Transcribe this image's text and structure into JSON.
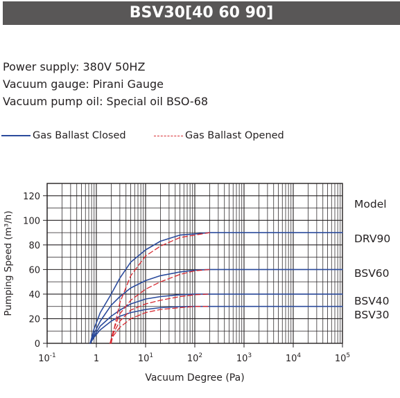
{
  "header": {
    "title": "BSV30[40 60 90]"
  },
  "specs": {
    "power_supply": "Power supply: 380V 50HZ",
    "vacuum_gauge": "Vacuum gauge: Pirani Gauge",
    "pump_oil": "Vacuum pump oil: Special oil BSO-68"
  },
  "legend": {
    "closed": {
      "label": "Gas Ballast Closed",
      "color": "#2a4a9c",
      "style": "solid"
    },
    "opened": {
      "label": "Gas Ballast Opened",
      "color": "#d7282f",
      "style": "dashed"
    }
  },
  "colors": {
    "title_bar": "#595757",
    "closed": "#2a4a9c",
    "opened": "#d7282f",
    "grid": "#231f20"
  },
  "chart_data": {
    "type": "line",
    "xlabel": "Vacuum Degree (Pa)",
    "ylabel": "Pumping Speed (m³/h)",
    "xscale": "log",
    "xlim": [
      0.1,
      100000
    ],
    "ylim": [
      0,
      130
    ],
    "x_ticks": [
      {
        "value": 0.1,
        "base": "10",
        "exp": "-1"
      },
      {
        "value": 1,
        "base": "1",
        "exp": ""
      },
      {
        "value": 10,
        "base": "10",
        "exp": "1"
      },
      {
        "value": 100,
        "base": "10",
        "exp": "2"
      },
      {
        "value": 1000,
        "base": "10",
        "exp": "3"
      },
      {
        "value": 10000,
        "base": "10",
        "exp": "4"
      },
      {
        "value": 100000,
        "base": "10",
        "exp": "5"
      }
    ],
    "y_ticks": [
      0,
      20,
      40,
      60,
      80,
      100,
      120
    ],
    "grid": true,
    "model_header": "Model",
    "models": [
      {
        "name": "DRV90",
        "max": 90
      },
      {
        "name": "BSV60",
        "max": 60
      },
      {
        "name": "BSV40",
        "max": 40
      },
      {
        "name": "BSV30",
        "max": 30
      }
    ],
    "series": [
      {
        "model": "DRV90",
        "ballast": "closed",
        "points": [
          [
            0.75,
            0
          ],
          [
            0.9,
            12
          ],
          [
            1.2,
            25
          ],
          [
            2,
            40
          ],
          [
            3,
            53
          ],
          [
            5,
            66
          ],
          [
            10,
            76
          ],
          [
            20,
            83
          ],
          [
            50,
            88
          ],
          [
            100,
            89
          ],
          [
            200,
            90
          ],
          [
            100000,
            90
          ]
        ]
      },
      {
        "model": "BSV60",
        "ballast": "closed",
        "points": [
          [
            0.75,
            0
          ],
          [
            0.9,
            8
          ],
          [
            1.2,
            18
          ],
          [
            2,
            31
          ],
          [
            3,
            38
          ],
          [
            5,
            45
          ],
          [
            10,
            51
          ],
          [
            20,
            55
          ],
          [
            50,
            58
          ],
          [
            100,
            59.5
          ],
          [
            200,
            60
          ],
          [
            100000,
            60
          ]
        ]
      },
      {
        "model": "BSV40",
        "ballast": "closed",
        "points": [
          [
            0.75,
            0
          ],
          [
            0.9,
            6
          ],
          [
            1.2,
            14
          ],
          [
            2,
            22
          ],
          [
            3,
            27
          ],
          [
            5,
            32
          ],
          [
            10,
            36
          ],
          [
            20,
            38
          ],
          [
            50,
            39.5
          ],
          [
            100,
            40
          ],
          [
            100000,
            40
          ]
        ]
      },
      {
        "model": "BSV30",
        "ballast": "closed",
        "points": [
          [
            0.75,
            0
          ],
          [
            0.9,
            5
          ],
          [
            1.2,
            11
          ],
          [
            2,
            18
          ],
          [
            3,
            22
          ],
          [
            5,
            25
          ],
          [
            10,
            27.5
          ],
          [
            20,
            29
          ],
          [
            50,
            29.8
          ],
          [
            100,
            30
          ],
          [
            100000,
            30
          ]
        ]
      },
      {
        "model": "DRV90",
        "ballast": "opened",
        "points": [
          [
            2,
            0
          ],
          [
            2.3,
            12
          ],
          [
            3,
            33
          ],
          [
            5,
            55
          ],
          [
            10,
            71
          ],
          [
            20,
            79
          ],
          [
            50,
            86
          ],
          [
            100,
            88
          ],
          [
            200,
            90
          ]
        ]
      },
      {
        "model": "BSV60",
        "ballast": "opened",
        "points": [
          [
            1.9,
            0
          ],
          [
            2.2,
            10
          ],
          [
            3,
            24
          ],
          [
            5,
            35
          ],
          [
            10,
            44
          ],
          [
            20,
            50
          ],
          [
            50,
            56
          ],
          [
            100,
            59
          ],
          [
            200,
            60
          ]
        ]
      },
      {
        "model": "BSV40",
        "ballast": "opened",
        "points": [
          [
            1.9,
            0
          ],
          [
            2.2,
            8
          ],
          [
            3,
            18
          ],
          [
            5,
            27
          ],
          [
            10,
            32
          ],
          [
            20,
            35
          ],
          [
            50,
            38
          ],
          [
            100,
            39.5
          ],
          [
            200,
            40
          ]
        ]
      },
      {
        "model": "BSV30",
        "ballast": "opened",
        "points": [
          [
            1.9,
            0
          ],
          [
            2.2,
            6
          ],
          [
            3,
            13
          ],
          [
            5,
            20
          ],
          [
            10,
            25
          ],
          [
            20,
            27.5
          ],
          [
            50,
            29
          ],
          [
            100,
            30
          ],
          [
            200,
            30
          ]
        ]
      }
    ]
  }
}
